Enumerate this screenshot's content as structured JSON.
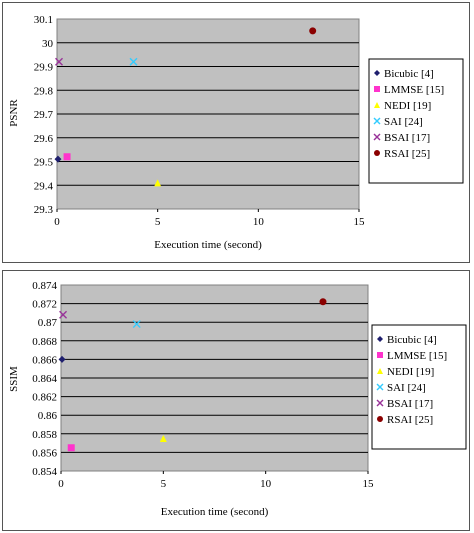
{
  "chart_data": [
    {
      "type": "scatter",
      "xlabel": "Execution time (second)",
      "ylabel": "PSNR",
      "xlim": [
        0,
        15
      ],
      "ylim": [
        29.3,
        30.1
      ],
      "xticks": [
        "0",
        "5",
        "10",
        "15"
      ],
      "yticks": [
        "29.3",
        "29.4",
        "29.5",
        "29.6",
        "29.7",
        "29.8",
        "29.9",
        "30",
        "30.1"
      ],
      "series": [
        {
          "name": "Bicubic [4]",
          "marker": "diamond",
          "color": "#1f1f6e",
          "x": [
            0.05
          ],
          "y": [
            29.51
          ]
        },
        {
          "name": "LMMSE [15]",
          "marker": "square",
          "color": "#ff33cc",
          "x": [
            0.5
          ],
          "y": [
            29.52
          ]
        },
        {
          "name": "NEDI [19]",
          "marker": "triangle",
          "color": "#ffff00",
          "x": [
            5.0
          ],
          "y": [
            29.41
          ]
        },
        {
          "name": "SAI [24]",
          "marker": "x",
          "color": "#33ccff",
          "x": [
            3.8
          ],
          "y": [
            29.92
          ]
        },
        {
          "name": "BSAI [17]",
          "marker": "x",
          "color": "#993399",
          "x": [
            0.1
          ],
          "y": [
            29.92
          ]
        },
        {
          "name": "RSAI [25]",
          "marker": "circle",
          "color": "#8b0000",
          "x": [
            12.7
          ],
          "y": [
            30.05
          ]
        }
      ]
    },
    {
      "type": "scatter",
      "xlabel": "Execution time (second)",
      "ylabel": "SSIM",
      "xlim": [
        0,
        15
      ],
      "ylim": [
        0.854,
        0.874
      ],
      "xticks": [
        "0",
        "5",
        "10",
        "15"
      ],
      "yticks": [
        "0.854",
        "0.856",
        "0.858",
        "0.86",
        "0.862",
        "0.864",
        "0.866",
        "0.868",
        "0.87",
        "0.872",
        "0.874"
      ],
      "series": [
        {
          "name": "Bicubic [4]",
          "marker": "diamond",
          "color": "#1f1f6e",
          "x": [
            0.05
          ],
          "y": [
            0.866
          ]
        },
        {
          "name": "LMMSE [15]",
          "marker": "square",
          "color": "#ff33cc",
          "x": [
            0.5
          ],
          "y": [
            0.8565
          ]
        },
        {
          "name": "NEDI [19]",
          "marker": "triangle",
          "color": "#ffff00",
          "x": [
            5.0
          ],
          "y": [
            0.8575
          ]
        },
        {
          "name": "SAI [24]",
          "marker": "x",
          "color": "#33ccff",
          "x": [
            3.7
          ],
          "y": [
            0.8698
          ]
        },
        {
          "name": "BSAI [17]",
          "marker": "x",
          "color": "#993399",
          "x": [
            0.1
          ],
          "y": [
            0.8708
          ]
        },
        {
          "name": "RSAI [25]",
          "marker": "circle",
          "color": "#8b0000",
          "x": [
            12.8
          ],
          "y": [
            0.8722
          ]
        }
      ]
    }
  ]
}
